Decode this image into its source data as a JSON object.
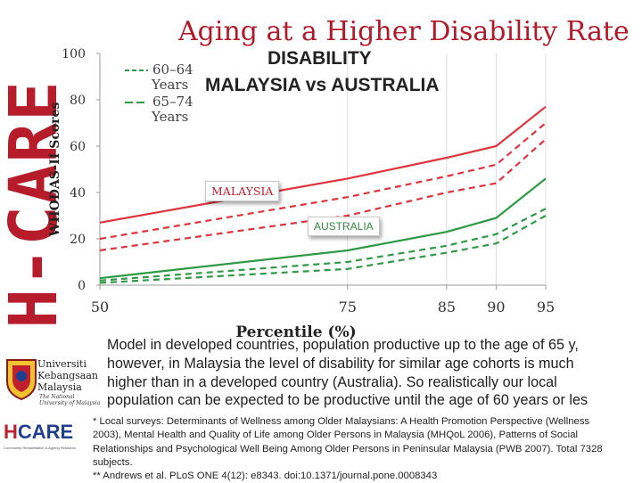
{
  "slide": {
    "brand_vertical": "H-CARE",
    "title": "Aging at a Higher Disability Rate",
    "body_lines": [
      "Model in developed countries, population productive up to the age of 65 y,",
      "however, in Malaysia the level of disability for similar age cohorts is much",
      "higher than in a developed country (Australia). So realistically our local",
      "population can be expected to be productive until the age of 60 years or les"
    ],
    "footnote_lines": [
      "* Local surveys: Determinants of Wellness among Older Malaysians: A Health Promotion Perspective (Wellness",
      "2003), Mental Health and Quality of Life among Older Persons in Malaysia (MHQoL 2006), Patterns of Social",
      "Relationships and Psychological Well Being Among Older Persons in Peninsular Malaysia (PWB 2007). Total 7328",
      "subjects.",
      "** Andrews et al. PLoS ONE 4(12): e8343. doi:10.1371/journal.pone.0008343"
    ],
    "logo_ukm": {
      "line1": "Universiti",
      "line2": "Kebangsaan",
      "line3": "Malaysia",
      "sub": "The National University of Malaysia"
    },
    "logo_hcare": {
      "text_h": "H",
      "text_rest": "CARE",
      "tagline": "Community Rehabilitation & Ageing Research"
    }
  },
  "colors": {
    "brand_red": "#b71c2a",
    "malaysia_red": "#e0343c",
    "australia_green": "#2f9a45"
  },
  "chart_data": {
    "type": "line",
    "title_line1": "DISABILITY",
    "title_line2": "MALAYSIA vs AUSTRALIA",
    "xlabel": "Percentile (%)",
    "ylabel": "WHODAS-II Scores",
    "x": [
      50,
      75,
      85,
      90,
      95
    ],
    "xlim": [
      50,
      95
    ],
    "ylim": [
      0,
      100
    ],
    "yticks": [
      0,
      20,
      40,
      60,
      80,
      100
    ],
    "legend": [
      {
        "label_line1": "60–64",
        "label_line2": "Years",
        "style": "dashed"
      },
      {
        "label_line1": "65–74",
        "label_line2": "Years",
        "style": "solid"
      }
    ],
    "series": [
      {
        "country": "Malaysia",
        "cohort": "65–74 Years",
        "style": "solid",
        "color": "#e0343c",
        "values": [
          27,
          46,
          55,
          60,
          77
        ]
      },
      {
        "country": "Malaysia",
        "cohort": "60–64 Years",
        "style": "dashed",
        "color": "#e0343c",
        "values": [
          20,
          38,
          47,
          52,
          70
        ]
      },
      {
        "country": "Malaysia",
        "cohort": "60–64 Years",
        "style": "dashed",
        "color": "#e0343c",
        "values": [
          15,
          30,
          40,
          44,
          63
        ]
      },
      {
        "country": "Australia",
        "cohort": "65–74 Years",
        "style": "solid",
        "color": "#2f9a45",
        "values": [
          3,
          15,
          23,
          29,
          46
        ]
      },
      {
        "country": "Australia",
        "cohort": "60–64 Years",
        "style": "dashed",
        "color": "#2f9a45",
        "values": [
          2,
          10,
          17,
          22,
          33
        ]
      },
      {
        "country": "Australia",
        "cohort": "60–64 Years",
        "style": "dashed",
        "color": "#2f9a45",
        "values": [
          1,
          7,
          14,
          18,
          30
        ]
      }
    ],
    "annotations": [
      {
        "text": "MALAYSIA",
        "target": "Malaysia"
      },
      {
        "text": "AUSTRALIA",
        "target": "Australia"
      }
    ]
  }
}
